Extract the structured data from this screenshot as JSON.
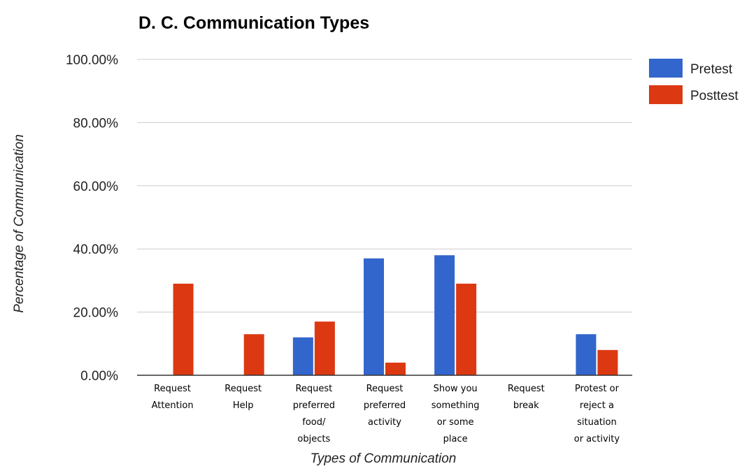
{
  "chart_data": {
    "type": "bar",
    "title": "D. C. Communication Types",
    "xlabel": "Types of Communication",
    "ylabel": "Percentage of Communication",
    "ylim": [
      0,
      1
    ],
    "yticks": [
      "0.00%",
      "20.00%",
      "40.00%",
      "60.00%",
      "80.00%",
      "100.00%"
    ],
    "ytick_values": [
      0,
      0.2,
      0.4,
      0.6,
      0.8,
      1.0
    ],
    "grid": true,
    "legend_position": "right",
    "categories": [
      [
        "Request",
        "Attention"
      ],
      [
        "Request",
        "Help"
      ],
      [
        "Request",
        "preferred",
        "food/",
        "objects"
      ],
      [
        "Request",
        "preferred",
        "activity"
      ],
      [
        "Show you",
        "something",
        "or some",
        "place"
      ],
      [
        "Request",
        "break"
      ],
      [
        "Protest or",
        "reject a",
        "situation",
        "or activity"
      ]
    ],
    "series": [
      {
        "name": "Pretest",
        "color": "#3366cc",
        "values": [
          0,
          0,
          0.12,
          0.37,
          0.38,
          0,
          0.13
        ]
      },
      {
        "name": "Posttest",
        "color": "#dc3912",
        "values": [
          0.29,
          0.13,
          0.17,
          0.04,
          0.29,
          0,
          0.08
        ]
      }
    ]
  }
}
